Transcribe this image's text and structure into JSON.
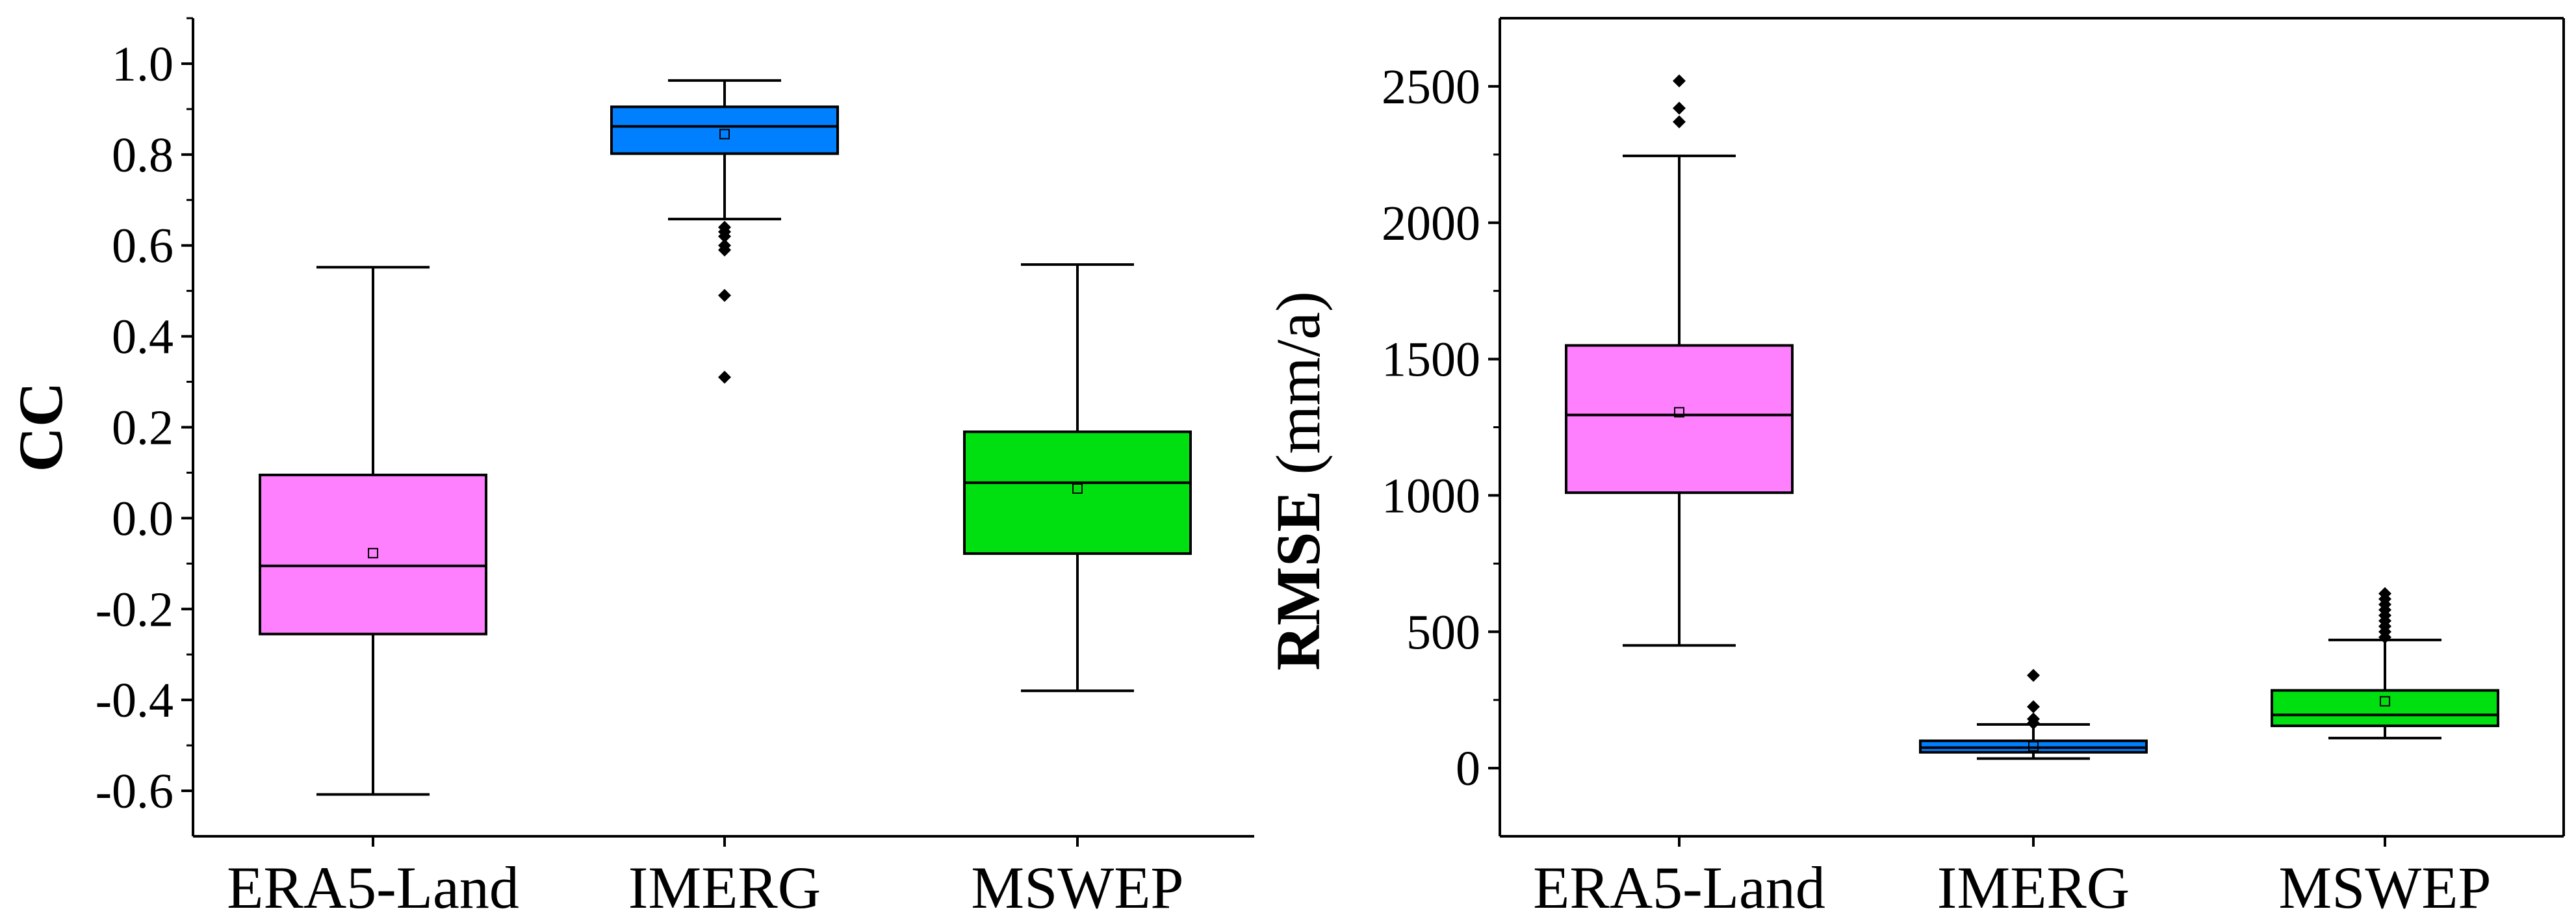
{
  "chart_data": [
    {
      "type": "box",
      "ylabel": "CC",
      "ylim": [
        -0.7,
        1.1
      ],
      "yticks": [
        -0.6,
        -0.4,
        -0.2,
        0.0,
        0.2,
        0.4,
        0.6,
        0.8,
        1.0
      ],
      "ytick_labels": [
        "-0.6",
        "-0.4",
        "-0.2",
        "0.0",
        "0.2",
        "0.4",
        "0.6",
        "0.8",
        "1.0"
      ],
      "categories": [
        "ERA5-Land",
        "IMERG",
        "MSWEP"
      ],
      "boxes": [
        {
          "name": "ERA5-Land",
          "color": "#FF80FF",
          "whisker_low": -0.608,
          "q1": -0.255,
          "median": -0.105,
          "q3": 0.095,
          "whisker_high": 0.552,
          "mean": -0.077,
          "outliers": []
        },
        {
          "name": "IMERG",
          "color": "#0080FF",
          "whisker_low": 0.658,
          "q1": 0.802,
          "median": 0.862,
          "q3": 0.905,
          "whisker_high": 0.963,
          "mean": 0.845,
          "outliers": [
            0.64,
            0.63,
            0.62,
            0.6,
            0.59,
            0.49,
            0.31
          ]
        },
        {
          "name": "MSWEP",
          "color": "#00E010",
          "whisker_low": -0.38,
          "q1": -0.078,
          "median": 0.078,
          "q3": 0.19,
          "whisker_high": 0.558,
          "mean": 0.065,
          "outliers": []
        }
      ]
    },
    {
      "type": "box",
      "ylabel_bold": "RMSE",
      "ylabel_normal": " (mm/a)",
      "ylim": [
        -250,
        2750
      ],
      "yticks": [
        0,
        500,
        1000,
        1500,
        2000,
        2500
      ],
      "ytick_labels": [
        "0",
        "500",
        "1000",
        "1500",
        "2000",
        "2500"
      ],
      "categories": [
        "ERA5-Land",
        "IMERG",
        "MSWEP"
      ],
      "boxes": [
        {
          "name": "ERA5-Land",
          "color": "#FF80FF",
          "whisker_low": 450,
          "q1": 1010,
          "median": 1295,
          "q3": 1550,
          "whisker_high": 2245,
          "mean": 1305,
          "outliers": [
            2370,
            2420,
            2520
          ]
        },
        {
          "name": "IMERG",
          "color": "#0080FF",
          "whisker_low": 35,
          "q1": 58,
          "median": 75,
          "q3": 100,
          "whisker_high": 160,
          "mean": 80,
          "outliers": [
            165,
            180,
            225,
            340
          ]
        },
        {
          "name": "MSWEP",
          "color": "#00E010",
          "whisker_low": 110,
          "q1": 155,
          "median": 195,
          "q3": 285,
          "whisker_high": 470,
          "mean": 245,
          "outliers": [
            480,
            500,
            520,
            540,
            560,
            580,
            600,
            620,
            640
          ]
        }
      ]
    }
  ]
}
